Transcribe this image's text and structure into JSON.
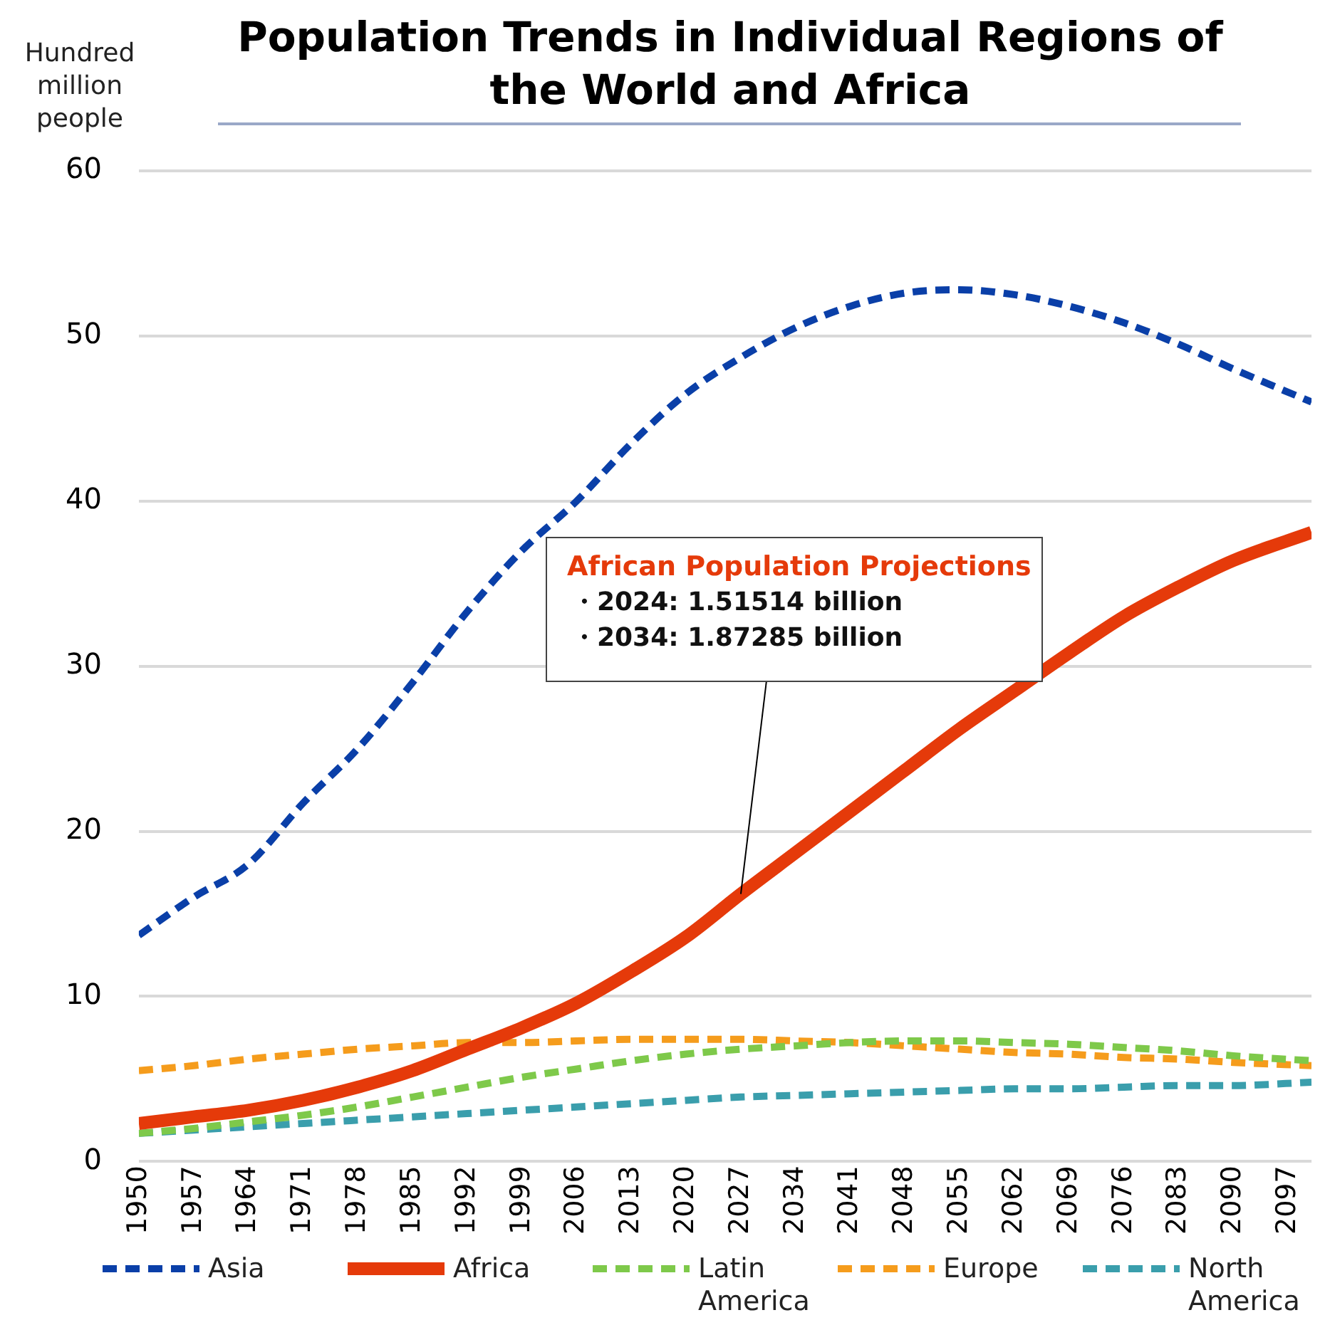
{
  "chart_data": {
    "type": "line",
    "title": "Population Trends in Individual Regions of the World and Africa",
    "ylabel": "Hundred million people",
    "x": [
      1950,
      1957,
      1964,
      1971,
      1978,
      1985,
      1992,
      1999,
      2006,
      2013,
      2020,
      2027,
      2034,
      2041,
      2048,
      2055,
      2062,
      2069,
      2076,
      2083,
      2090,
      2100
    ],
    "series": [
      {
        "name": "Asia",
        "color": "#0a3fa8",
        "line_style": "dashed",
        "values": [
          13.7,
          16.0,
          18.0,
          21.7,
          25.0,
          29.0,
          33.3,
          37.0,
          40.0,
          43.5,
          46.5,
          48.7,
          50.5,
          51.8,
          52.6,
          52.8,
          52.5,
          51.8,
          50.8,
          49.5,
          48.0,
          46.0
        ]
      },
      {
        "name": "Africa",
        "color": "#e53a0a",
        "line_style": "solid",
        "values": [
          2.3,
          2.7,
          3.1,
          3.7,
          4.5,
          5.5,
          6.8,
          8.1,
          9.6,
          11.5,
          13.6,
          16.2,
          18.7,
          21.2,
          23.7,
          26.2,
          28.5,
          30.8,
          33.0,
          34.8,
          36.4,
          38.1
        ]
      },
      {
        "name": "Latin America",
        "color": "#7ec94a",
        "line_style": "dashed",
        "values": [
          1.7,
          2.0,
          2.4,
          2.8,
          3.3,
          3.9,
          4.5,
          5.1,
          5.6,
          6.1,
          6.5,
          6.8,
          7.0,
          7.2,
          7.3,
          7.3,
          7.2,
          7.1,
          6.9,
          6.7,
          6.4,
          6.1
        ]
      },
      {
        "name": "Europe",
        "color": "#f59c1c",
        "line_style": "dashed",
        "values": [
          5.5,
          5.8,
          6.2,
          6.5,
          6.8,
          7.0,
          7.2,
          7.2,
          7.3,
          7.4,
          7.4,
          7.4,
          7.3,
          7.2,
          7.0,
          6.8,
          6.6,
          6.5,
          6.3,
          6.2,
          6.0,
          5.8
        ]
      },
      {
        "name": "North America",
        "color": "#3a9eac",
        "line_style": "dashed",
        "values": [
          1.7,
          1.9,
          2.1,
          2.3,
          2.5,
          2.7,
          2.9,
          3.1,
          3.3,
          3.5,
          3.7,
          3.9,
          4.0,
          4.1,
          4.2,
          4.3,
          4.4,
          4.4,
          4.5,
          4.6,
          4.6,
          4.8
        ]
      }
    ],
    "xlim": [
      1950,
      2100
    ],
    "xticks": [
      1950,
      1957,
      1964,
      1971,
      1978,
      1985,
      1992,
      1999,
      2006,
      2013,
      2020,
      2027,
      2034,
      2041,
      2048,
      2055,
      2062,
      2069,
      2076,
      2083,
      2090,
      2097
    ],
    "ylim": [
      0,
      60
    ],
    "yticks": [
      0,
      10,
      20,
      30,
      40,
      50,
      60
    ],
    "grid": "y",
    "legend": "bottom",
    "marker": "none",
    "annotations": [
      "African Population Projections",
      "・2024: 1.51514 billion",
      {
        "text": "・2034: 1.87285 billion",
        "x": 2027,
        "y": 16.2
      }
    ]
  }
}
